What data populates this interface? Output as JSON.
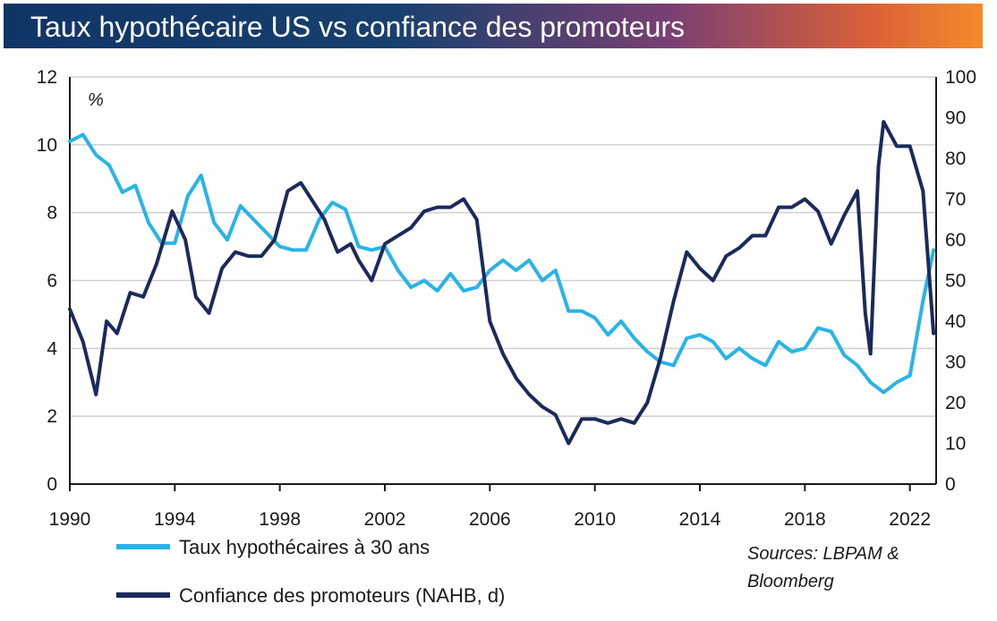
{
  "header": {
    "title": "Taux hypothécaire US vs confiance des promoteurs"
  },
  "chart_data": {
    "type": "line",
    "title": "Taux hypothécaire US vs confiance des promoteurs",
    "left_unit": "%",
    "xlim": [
      1990,
      2023
    ],
    "ylim_left": [
      0,
      12
    ],
    "ylim_right": [
      0,
      100
    ],
    "x_ticks": [
      "1990",
      "1994",
      "1998",
      "2002",
      "2006",
      "2010",
      "2014",
      "2018",
      "2022"
    ],
    "y_left_ticks": [
      "0",
      "2",
      "4",
      "6",
      "8",
      "10",
      "12"
    ],
    "y_right_ticks": [
      "0",
      "10",
      "20",
      "30",
      "40",
      "50",
      "60",
      "70",
      "80",
      "90",
      "100"
    ],
    "grid": "horizontal",
    "colors": {
      "mortgage": "#27b4e8",
      "nahb": "#1b2a5c"
    },
    "series": [
      {
        "name": "Taux hypothécaires à 30 ans",
        "axis": "left",
        "x": [
          1990,
          1990.5,
          1991,
          1991.5,
          1992,
          1992.5,
          1993,
          1993.5,
          1994,
          1994.5,
          1995,
          1995.5,
          1996,
          1996.5,
          1997,
          1997.5,
          1998,
          1998.5,
          1999,
          1999.5,
          2000,
          2000.5,
          2001,
          2001.5,
          2002,
          2002.5,
          2003,
          2003.5,
          2004,
          2004.5,
          2005,
          2005.5,
          2006,
          2006.5,
          2007,
          2007.5,
          2008,
          2008.5,
          2009,
          2009.5,
          2010,
          2010.5,
          2011,
          2011.5,
          2012,
          2012.5,
          2013,
          2013.5,
          2014,
          2014.5,
          2015,
          2015.5,
          2016,
          2016.5,
          2017,
          2017.5,
          2018,
          2018.5,
          2019,
          2019.5,
          2020,
          2020.5,
          2021,
          2021.5,
          2022,
          2022.5,
          2022.9
        ],
        "values": [
          10.1,
          10.3,
          9.7,
          9.4,
          8.6,
          8.8,
          7.7,
          7.1,
          7.1,
          8.5,
          9.1,
          7.7,
          7.2,
          8.2,
          7.8,
          7.4,
          7.0,
          6.9,
          6.9,
          7.8,
          8.3,
          8.1,
          7.0,
          6.9,
          7.0,
          6.3,
          5.8,
          6.0,
          5.7,
          6.2,
          5.7,
          5.8,
          6.3,
          6.6,
          6.3,
          6.6,
          6.0,
          6.3,
          5.1,
          5.1,
          4.9,
          4.4,
          4.8,
          4.3,
          3.9,
          3.6,
          3.5,
          4.3,
          4.4,
          4.2,
          3.7,
          4.0,
          3.7,
          3.5,
          4.2,
          3.9,
          4.0,
          4.6,
          4.5,
          3.8,
          3.5,
          3.0,
          2.7,
          3.0,
          3.2,
          5.4,
          6.9
        ]
      },
      {
        "name": "Confiance des promoteurs (NAHB, d)",
        "axis": "right",
        "x": [
          1990,
          1990.5,
          1991,
          1991.4,
          1991.8,
          1992.3,
          1992.8,
          1993.3,
          1993.9,
          1994.4,
          1994.8,
          1995.3,
          1995.8,
          1996.3,
          1996.8,
          1997.3,
          1997.8,
          1998.3,
          1998.8,
          1999.2,
          1999.7,
          2000.2,
          2000.7,
          2001,
          2001.5,
          2002,
          2002.5,
          2003,
          2003.5,
          2004,
          2004.5,
          2005,
          2005.5,
          2006,
          2006.5,
          2007,
          2007.5,
          2008,
          2008.5,
          2009,
          2009.5,
          2010,
          2010.5,
          2011,
          2011.5,
          2012,
          2012.5,
          2013,
          2013.5,
          2014,
          2014.5,
          2015,
          2015.5,
          2016,
          2016.5,
          2017,
          2017.5,
          2018,
          2018.5,
          2019,
          2019.5,
          2020,
          2020.3,
          2020.5,
          2020.8,
          2021,
          2021.5,
          2022,
          2022.5,
          2022.9
        ],
        "values": [
          43,
          35,
          22,
          40,
          37,
          47,
          46,
          54,
          67,
          60,
          46,
          42,
          53,
          57,
          56,
          56,
          60,
          72,
          74,
          70,
          65,
          57,
          59,
          55,
          50,
          59,
          61,
          63,
          67,
          68,
          68,
          70,
          65,
          40,
          32,
          26,
          22,
          19,
          17,
          10,
          16,
          16,
          15,
          16,
          15,
          20,
          31,
          45,
          57,
          53,
          50,
          56,
          58,
          61,
          61,
          68,
          68,
          70,
          67,
          59,
          66,
          72,
          42,
          32,
          78,
          89,
          83,
          83,
          72,
          37
        ]
      }
    ],
    "legend": {
      "placement": "bottom-left",
      "items": [
        "Taux hypothécaires à 30 ans",
        "Confiance des promoteurs (NAHB, d)"
      ]
    },
    "sources": [
      "Sources: LBPAM &",
      "Bloomberg"
    ]
  }
}
